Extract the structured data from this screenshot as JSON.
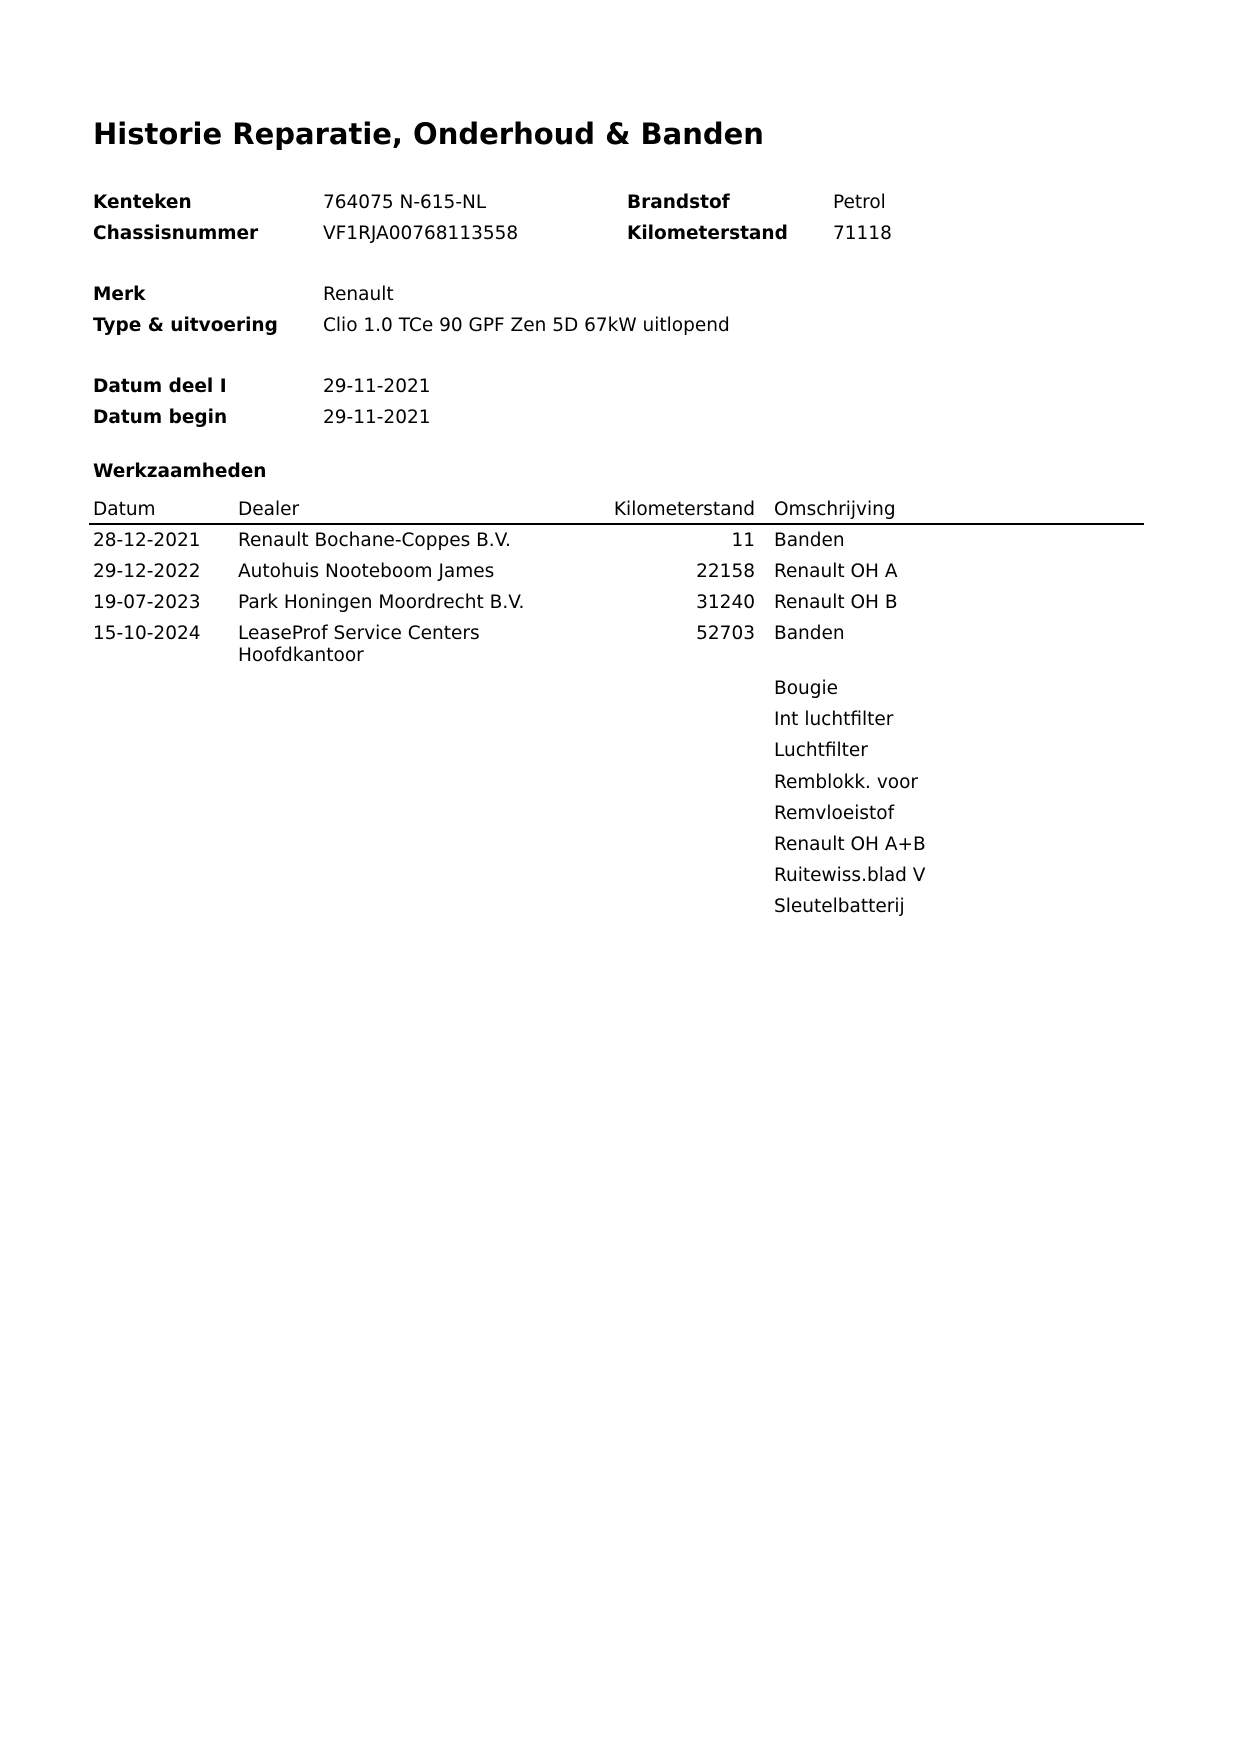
{
  "title": "Historie Reparatie, Onderhoud & Banden",
  "vehicle": {
    "kenteken_label": "Kenteken",
    "kenteken": "764075 N-615-NL",
    "chassis_label": "Chassisnummer",
    "chassis": "VF1RJA00768113558",
    "brandstof_label": "Brandstof",
    "brandstof": "Petrol",
    "km_label": "Kilometerstand",
    "km": "71118",
    "merk_label": "Merk",
    "merk": "Renault",
    "type_label": "Type & uitvoering",
    "type": "Clio 1.0 TCe 90 GPF Zen 5D 67kW uitlopend",
    "datum_deel_label": "Datum deel I",
    "datum_deel": "29-11-2021",
    "datum_begin_label": "Datum begin",
    "datum_begin": "29-11-2021"
  },
  "work": {
    "heading": "Werkzaamheden",
    "columns": [
      "Datum",
      "Dealer",
      "Kilometerstand",
      "Omschrijving"
    ],
    "rows": [
      {
        "datum": "28-12-2021",
        "dealer": "Renault Bochane-Coppes B.V.",
        "km": "11",
        "omschrijving": "Banden"
      },
      {
        "datum": "29-12-2022",
        "dealer": "Autohuis Nooteboom James",
        "km": "22158",
        "omschrijving": "Renault OH A"
      },
      {
        "datum": "19-07-2023",
        "dealer": "Park Honingen Moordrecht B.V.",
        "km": "31240",
        "omschrijving": "Renault OH B"
      },
      {
        "datum": "15-10-2024",
        "dealer": "LeaseProf Service Centers",
        "dealer_line2": "Hoofdkantoor",
        "km": "52703",
        "omschrijving": "Banden",
        "extra": [
          "Bougie",
          "Int luchtfilter",
          "Luchtfilter",
          "Remblokk. voor",
          "Remvloeistof",
          "Renault OH A+B",
          "Ruitewiss.blad V",
          "Sleutelbatterij"
        ]
      }
    ]
  }
}
